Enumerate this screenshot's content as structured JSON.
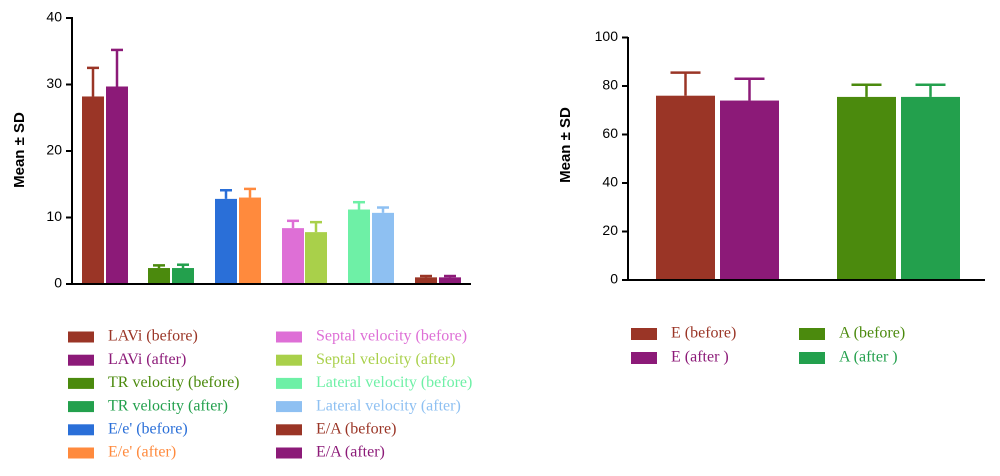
{
  "chart_data": [
    {
      "type": "bar",
      "ylabel": "Mean ± SD",
      "ylim": [
        0,
        40
      ],
      "yticks": [
        "0",
        "10",
        "20",
        "30",
        "40"
      ],
      "error_bars": "SD",
      "series": [
        {
          "name": "LAVi (before)",
          "value": 28.2,
          "sd": 4.3,
          "color": "#9a3526"
        },
        {
          "name": "LAVi (after)",
          "value": 29.7,
          "sd": 5.5,
          "color": "#8c1a78"
        },
        {
          "name": "TR velocity (before)",
          "value": 2.4,
          "sd": 0.4,
          "color": "#4b8a0d"
        },
        {
          "name": "TR velocity (after)",
          "value": 2.4,
          "sd": 0.5,
          "color": "#23a04d"
        },
        {
          "name": "E/e' (before)",
          "value": 12.8,
          "sd": 1.3,
          "color": "#2a6fd8"
        },
        {
          "name": "E/e'  (after)",
          "value": 13.0,
          "sd": 1.3,
          "color": "#ff8a3d"
        },
        {
          "name": "Septal velocity (before)",
          "value": 8.4,
          "sd": 1.1,
          "color": "#de6fd6"
        },
        {
          "name": "Septal velocity (after)",
          "value": 7.8,
          "sd": 1.5,
          "color": "#a9d04a"
        },
        {
          "name": "Lateral velocity (before)",
          "value": 11.2,
          "sd": 1.1,
          "color": "#6ef0a6"
        },
        {
          "name": "Lateral velocity (after)",
          "value": 10.7,
          "sd": 0.8,
          "color": "#8ec0f2"
        },
        {
          "name": "E/A (before)",
          "value": 1.0,
          "sd": 0.2,
          "color": "#9a3526"
        },
        {
          "name": "E/A (after)",
          "value": 1.0,
          "sd": 0.2,
          "color": "#8c1a78"
        }
      ]
    },
    {
      "type": "bar",
      "ylabel": "Mean ± SD",
      "ylim": [
        0,
        100
      ],
      "yticks": [
        "0",
        "20",
        "40",
        "60",
        "80",
        "100"
      ],
      "error_bars": "SD",
      "series": [
        {
          "name": "E (before)",
          "value": 76,
          "sd": 9.5,
          "color": "#9a3526"
        },
        {
          "name": "E (after )",
          "value": 74,
          "sd": 9,
          "color": "#8c1a78"
        },
        {
          "name": "A (before)",
          "value": 75.5,
          "sd": 5,
          "color": "#4b8a0d"
        },
        {
          "name": "A (after )",
          "value": 75.5,
          "sd": 5,
          "color": "#23a04d"
        }
      ]
    }
  ]
}
